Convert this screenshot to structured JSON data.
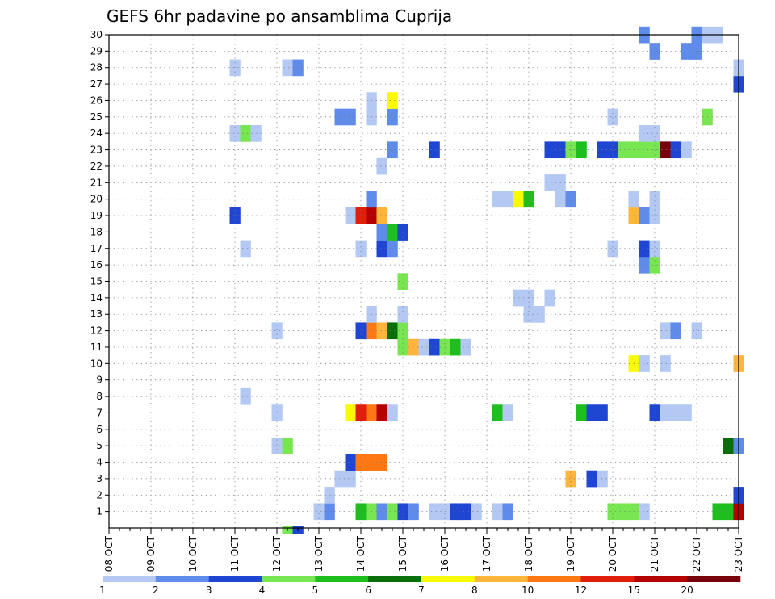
{
  "chart_data": {
    "type": "heatmap",
    "title": "GEFS 6hr padavine po ansamblima Cuprija",
    "xlabel": "",
    "ylabel": "",
    "x_categories": [
      "08 OCT",
      "09 OCT",
      "10 OCT",
      "11 OCT",
      "12 OCT",
      "13 OCT",
      "14 OCT",
      "15 OCT",
      "16 OCT",
      "17 OCT",
      "18 OCT",
      "19 OCT",
      "20 OCT",
      "21 OCT",
      "22 OCT",
      "23 OCT"
    ],
    "x_steps_per_day": 4,
    "x_step_hours": 6,
    "y_categories": [
      "1",
      "2",
      "3",
      "4",
      "5",
      "6",
      "7",
      "8",
      "9",
      "10",
      "11",
      "12",
      "13",
      "14",
      "15",
      "16",
      "17",
      "18",
      "19",
      "20",
      "21",
      "22",
      "23",
      "24",
      "25",
      "26",
      "27",
      "28",
      "29",
      "30"
    ],
    "grid": true,
    "legend": {
      "position": "bottom",
      "labels": [
        "1",
        "2",
        "3",
        "4",
        "5",
        "6",
        "7",
        "8",
        "10",
        "12",
        "15",
        "20"
      ],
      "colors": [
        "#b4c8f4",
        "#5f8ceb",
        "#1e46d2",
        "#78e650",
        "#1ebe1e",
        "#0a6e0a",
        "#fafa00",
        "#ffb43c",
        "#ff7814",
        "#e11e0a",
        "#b40000",
        "#78000a"
      ]
    },
    "cells": [
      [
        20,
        1,
        1
      ],
      [
        21,
        1,
        2
      ],
      [
        24,
        1,
        5
      ],
      [
        25,
        1,
        4
      ],
      [
        26,
        1,
        2
      ],
      [
        27,
        1,
        4
      ],
      [
        28,
        1,
        3
      ],
      [
        29,
        1,
        2
      ],
      [
        31,
        1,
        1
      ],
      [
        32,
        1,
        1
      ],
      [
        33,
        1,
        3
      ],
      [
        34,
        1,
        3
      ],
      [
        35,
        1,
        1
      ],
      [
        37,
        1,
        1
      ],
      [
        38,
        1,
        2
      ],
      [
        48,
        1,
        4
      ],
      [
        49,
        1,
        4
      ],
      [
        50,
        1,
        4
      ],
      [
        51,
        1,
        1
      ],
      [
        58,
        1,
        5
      ],
      [
        59,
        1,
        5
      ],
      [
        60,
        1,
        11
      ],
      [
        60,
        2,
        3
      ],
      [
        21,
        2,
        1
      ],
      [
        22,
        3,
        1
      ],
      [
        23,
        3,
        1
      ],
      [
        44,
        3,
        8
      ],
      [
        46,
        3,
        3
      ],
      [
        47,
        3,
        1
      ],
      [
        23,
        4,
        3
      ],
      [
        24,
        4,
        9
      ],
      [
        25,
        4,
        9
      ],
      [
        26,
        4,
        9
      ],
      [
        16,
        5,
        1
      ],
      [
        17,
        5,
        4
      ],
      [
        59,
        5,
        6
      ],
      [
        60,
        5,
        2
      ],
      [
        16,
        7,
        1
      ],
      [
        23,
        7,
        7
      ],
      [
        24,
        7,
        10
      ],
      [
        25,
        7,
        9
      ],
      [
        26,
        7,
        11
      ],
      [
        27,
        7,
        1
      ],
      [
        37,
        7,
        5
      ],
      [
        38,
        7,
        1
      ],
      [
        45,
        7,
        5
      ],
      [
        46,
        7,
        3
      ],
      [
        47,
        7,
        3
      ],
      [
        52,
        7,
        3
      ],
      [
        53,
        7,
        1
      ],
      [
        54,
        7,
        1
      ],
      [
        55,
        7,
        1
      ],
      [
        13,
        8,
        1
      ],
      [
        50,
        10,
        7
      ],
      [
        51,
        10,
        1
      ],
      [
        53,
        10,
        1
      ],
      [
        60,
        10,
        8
      ],
      [
        28,
        11,
        4
      ],
      [
        29,
        11,
        8
      ],
      [
        30,
        11,
        1
      ],
      [
        31,
        11,
        3
      ],
      [
        32,
        11,
        4
      ],
      [
        33,
        11,
        5
      ],
      [
        34,
        11,
        1
      ],
      [
        16,
        12,
        1
      ],
      [
        24,
        12,
        3
      ],
      [
        25,
        12,
        9
      ],
      [
        26,
        12,
        8
      ],
      [
        27,
        12,
        6
      ],
      [
        28,
        12,
        4
      ],
      [
        53,
        12,
        1
      ],
      [
        54,
        12,
        2
      ],
      [
        56,
        12,
        1
      ],
      [
        25,
        13,
        1
      ],
      [
        28,
        13,
        1
      ],
      [
        40,
        13,
        1
      ],
      [
        41,
        13,
        1
      ],
      [
        39,
        14,
        1
      ],
      [
        40,
        14,
        1
      ],
      [
        42,
        14,
        1
      ],
      [
        28,
        15,
        4
      ],
      [
        51,
        16,
        2
      ],
      [
        52,
        16,
        4
      ],
      [
        13,
        17,
        1
      ],
      [
        24,
        17,
        1
      ],
      [
        26,
        17,
        3
      ],
      [
        27,
        17,
        2
      ],
      [
        48,
        17,
        1
      ],
      [
        51,
        17,
        3
      ],
      [
        52,
        17,
        1
      ],
      [
        26,
        18,
        2
      ],
      [
        27,
        18,
        5
      ],
      [
        28,
        18,
        3
      ],
      [
        12,
        19,
        3
      ],
      [
        23,
        19,
        1
      ],
      [
        24,
        19,
        10
      ],
      [
        25,
        19,
        11
      ],
      [
        26,
        19,
        8
      ],
      [
        50,
        19,
        8
      ],
      [
        51,
        19,
        2
      ],
      [
        52,
        19,
        1
      ],
      [
        25,
        20,
        2
      ],
      [
        37,
        20,
        1
      ],
      [
        38,
        20,
        1
      ],
      [
        39,
        20,
        7
      ],
      [
        40,
        20,
        5
      ],
      [
        43,
        20,
        1
      ],
      [
        44,
        20,
        2
      ],
      [
        50,
        20,
        1
      ],
      [
        52,
        20,
        1
      ],
      [
        42,
        21,
        1
      ],
      [
        43,
        21,
        1
      ],
      [
        26,
        22,
        1
      ],
      [
        27,
        23,
        2
      ],
      [
        31,
        23,
        3
      ],
      [
        42,
        23,
        3
      ],
      [
        43,
        23,
        3
      ],
      [
        44,
        23,
        4
      ],
      [
        45,
        23,
        5
      ],
      [
        47,
        23,
        3
      ],
      [
        48,
        23,
        3
      ],
      [
        49,
        23,
        4
      ],
      [
        50,
        23,
        4
      ],
      [
        51,
        23,
        4
      ],
      [
        52,
        23,
        4
      ],
      [
        53,
        23,
        12
      ],
      [
        54,
        23,
        3
      ],
      [
        55,
        23,
        1
      ],
      [
        12,
        24,
        1
      ],
      [
        13,
        24,
        4
      ],
      [
        14,
        24,
        1
      ],
      [
        51,
        24,
        1
      ],
      [
        52,
        24,
        1
      ],
      [
        22,
        25,
        2
      ],
      [
        23,
        25,
        2
      ],
      [
        25,
        25,
        1
      ],
      [
        27,
        25,
        2
      ],
      [
        48,
        25,
        1
      ],
      [
        57,
        25,
        4
      ],
      [
        25,
        26,
        1
      ],
      [
        27,
        26,
        7
      ],
      [
        60,
        27,
        3
      ],
      [
        12,
        28,
        1
      ],
      [
        17,
        28,
        1
      ],
      [
        18,
        28,
        2
      ],
      [
        60,
        28,
        1
      ],
      [
        52,
        29,
        2
      ],
      [
        55,
        29,
        2
      ],
      [
        56,
        29,
        2
      ],
      [
        51,
        30,
        2
      ],
      [
        56,
        30,
        2
      ],
      [
        57,
        30,
        1
      ],
      [
        58,
        30,
        1
      ]
    ],
    "row0_cells": [
      [
        17,
        4
      ],
      [
        18,
        3
      ]
    ]
  }
}
